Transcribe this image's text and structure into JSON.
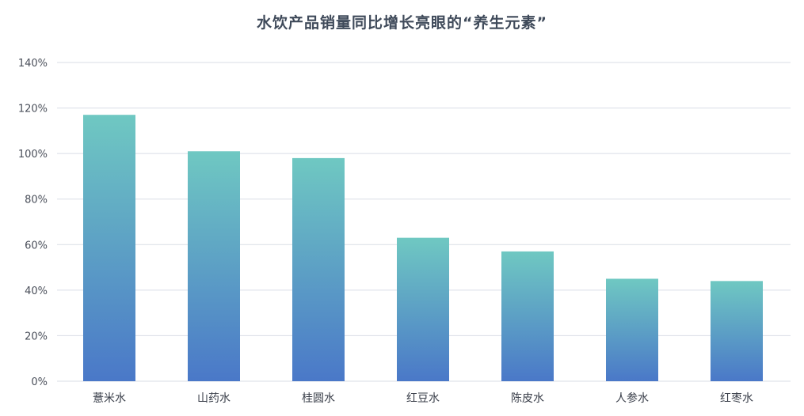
{
  "chart_data": {
    "type": "bar",
    "title": "水饮产品销量同比增长亮眼的“养生元素”",
    "categories": [
      "薏米水",
      "山药水",
      "桂圆水",
      "红豆水",
      "陈皮水",
      "人参水",
      "红枣水"
    ],
    "values": [
      117,
      101,
      98,
      63,
      57,
      45,
      44
    ],
    "value_format": "percent",
    "ylim": [
      0,
      140
    ],
    "yticks": [
      0,
      20,
      40,
      60,
      80,
      100,
      120,
      140
    ],
    "ytick_labels": [
      "0%",
      "20%",
      "40%",
      "60%",
      "80%",
      "100%",
      "120%",
      "140%"
    ],
    "xlabel": "",
    "ylabel": "",
    "grid": true,
    "legend": "none",
    "colors": {
      "bar_top": "#6fc8c2",
      "bar_bottom": "#4a78c8",
      "grid": "#d9dde6",
      "title": "#3f4a5a"
    }
  }
}
